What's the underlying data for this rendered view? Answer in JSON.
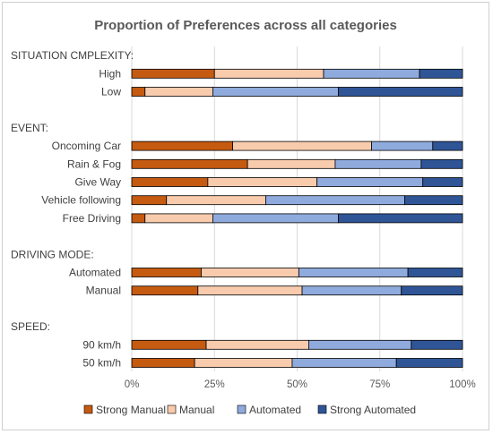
{
  "chart_data": {
    "type": "bar",
    "orientation": "horizontal",
    "stacked": "percent",
    "title": "Proportion of Preferences across all categories",
    "xlim": [
      0,
      100
    ],
    "x_ticks": [
      "0%",
      "25%",
      "50%",
      "75%",
      "100%"
    ],
    "x_tick_values": [
      0,
      25,
      50,
      75,
      100
    ],
    "grid": true,
    "legend_position": "bottom",
    "series": [
      {
        "name": "Strong Manual",
        "color": "#c55a11"
      },
      {
        "name": "Manual",
        "color": "#f8cbad"
      },
      {
        "name": "Automated",
        "color": "#8faadc"
      },
      {
        "name": "Strong Automated",
        "color": "#2f5597"
      }
    ],
    "groups": [
      {
        "heading": "SITUATION CMPLEXITY:",
        "rows": [
          {
            "label": "High",
            "values": [
              25,
              33,
              29,
              13
            ]
          },
          {
            "label": "Low",
            "values": [
              4,
              20.5,
              38,
              37.5
            ]
          }
        ]
      },
      {
        "heading": "EVENT:",
        "rows": [
          {
            "label": "Oncoming Car",
            "values": [
              30.5,
              42,
              18.5,
              9
            ]
          },
          {
            "label": "Rain & Fog",
            "values": [
              35,
              26.5,
              26,
              12.5
            ]
          },
          {
            "label": "Give Way",
            "values": [
              23,
              33,
              32,
              12
            ]
          },
          {
            "label": "Vehicle following",
            "values": [
              10.5,
              30,
              42,
              17.5
            ]
          },
          {
            "label": "Free Driving",
            "values": [
              4,
              20.5,
              38,
              37.5
            ]
          }
        ]
      },
      {
        "heading": "DRIVING MODE:",
        "rows": [
          {
            "label": "Automated",
            "values": [
              21,
              29.5,
              33,
              16.5
            ]
          },
          {
            "label": "Manual",
            "values": [
              20,
              31.5,
              30,
              18.5
            ]
          }
        ]
      },
      {
        "heading": "SPEED:",
        "rows": [
          {
            "label": "90 km/h",
            "values": [
              22.5,
              31,
              31,
              15.5
            ]
          },
          {
            "label": "50 km/h",
            "values": [
              19,
              29.5,
              31.5,
              20
            ]
          }
        ]
      }
    ]
  }
}
